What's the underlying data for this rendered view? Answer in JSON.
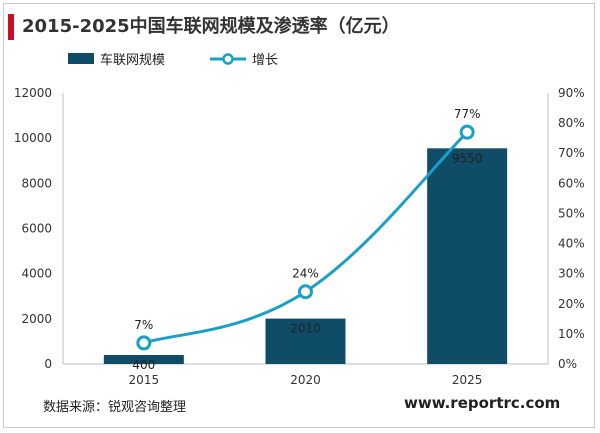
{
  "header": {
    "title": "2015-2025中国车联网规模及渗透率（亿元）"
  },
  "footer": {
    "source": "数据来源：锐观咨询整理",
    "website": "www.reportrc.com"
  },
  "chart_data": {
    "type": "bar",
    "categories": [
      "2015",
      "2020",
      "2025"
    ],
    "series": [
      {
        "name": "车联网规模",
        "type": "bar",
        "axis": "left",
        "values": [
          400,
          2010,
          9550
        ],
        "color": "#0f4c67",
        "labels": [
          "400",
          "2010",
          "9550"
        ]
      },
      {
        "name": "增长",
        "type": "line",
        "axis": "right",
        "values": [
          7,
          24,
          77
        ],
        "color": "#1aa0c8",
        "labels": [
          "7%",
          "24%",
          "77%"
        ]
      }
    ],
    "y_left": {
      "range": [
        0,
        12000
      ],
      "ticks": [
        "0",
        "2000",
        "4000",
        "6000",
        "8000",
        "10000",
        "12000"
      ]
    },
    "y_right": {
      "range": [
        0,
        90
      ],
      "ticks": [
        "0%",
        "10%",
        "20%",
        "30%",
        "40%",
        "50%",
        "60%",
        "70%",
        "80%",
        "90%"
      ]
    },
    "legend_position": "top-left",
    "grid": false
  }
}
